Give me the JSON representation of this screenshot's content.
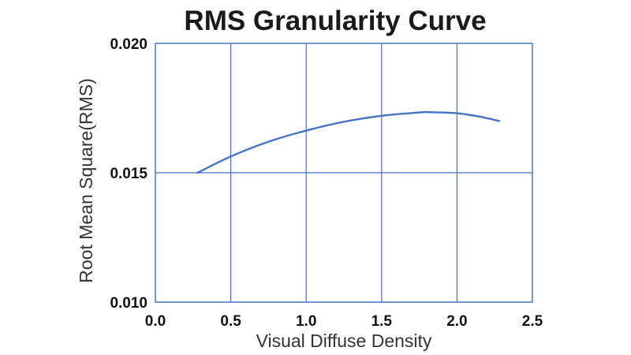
{
  "chart_data": {
    "type": "line",
    "title": "RMS Granularity Curve",
    "xlabel": "Visual Diffuse Density",
    "ylabel": "Root Mean Square(RMS)",
    "xlim": [
      0.0,
      2.5
    ],
    "ylim": [
      0.01,
      0.02
    ],
    "x_ticks": [
      "0.0",
      "0.5",
      "1.0",
      "1.5",
      "2.0",
      "2.5"
    ],
    "y_ticks": [
      "0.010",
      "0.015",
      "0.020"
    ],
    "x_tick_values": [
      0.0,
      0.5,
      1.0,
      1.5,
      2.0,
      2.5
    ],
    "y_tick_values": [
      0.01,
      0.015,
      0.02
    ],
    "grid": true,
    "series": [
      {
        "color": "#4472C4",
        "x": [
          0.28,
          0.5,
          0.75,
          1.0,
          1.25,
          1.5,
          1.75,
          1.82,
          2.0,
          2.15,
          2.28
        ],
        "y": [
          0.015,
          0.01563,
          0.0162,
          0.01663,
          0.01697,
          0.0172,
          0.01733,
          0.01734,
          0.0173,
          0.01717,
          0.017
        ]
      }
    ],
    "colors": {
      "grid": "#4472C4",
      "axis": "#4472C4",
      "line": "#4472C4"
    }
  }
}
